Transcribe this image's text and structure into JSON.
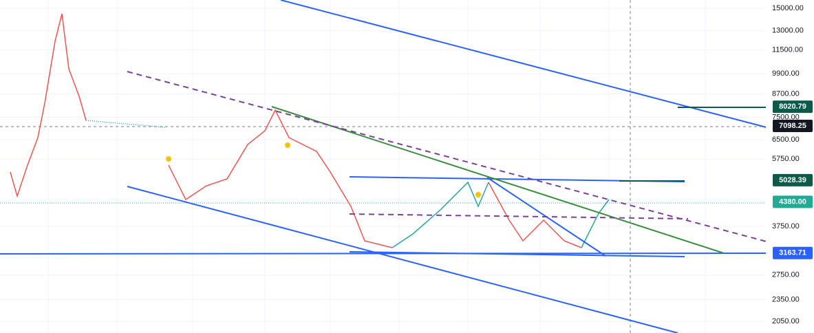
{
  "price_axis": {
    "log": true,
    "ylim": [
      1903,
      15808
    ],
    "ticks": [
      {
        "value": 15000,
        "label": "15000.00"
      },
      {
        "value": 13000,
        "label": "13000.00"
      },
      {
        "value": 11500,
        "label": "11500.00"
      },
      {
        "value": 9900,
        "label": "9900.00"
      },
      {
        "value": 8700,
        "label": "8700.00"
      },
      {
        "value": 7500,
        "label": "7500.00"
      },
      {
        "value": 6500,
        "label": "6500.00"
      },
      {
        "value": 5750,
        "label": "5750.00"
      },
      {
        "value": 3750,
        "label": "3750.00"
      },
      {
        "value": 2750,
        "label": "2750.00"
      },
      {
        "value": 2350,
        "label": "2350.00"
      },
      {
        "value": 2050,
        "label": "2050.00"
      }
    ],
    "tags": [
      {
        "value": 8020.79,
        "label": "8020.79",
        "color": "#0b5a4a"
      },
      {
        "value": 7098.25,
        "label": "7098.25",
        "color": "#131722"
      },
      {
        "value": 5028.39,
        "label": "5028.39",
        "color": "#0b5a4a"
      },
      {
        "value": 4380,
        "label": "4380.00",
        "color": "#22ab94"
      },
      {
        "value": 3163.71,
        "label": "3163.71",
        "color": "#2962ff"
      }
    ]
  }
}
